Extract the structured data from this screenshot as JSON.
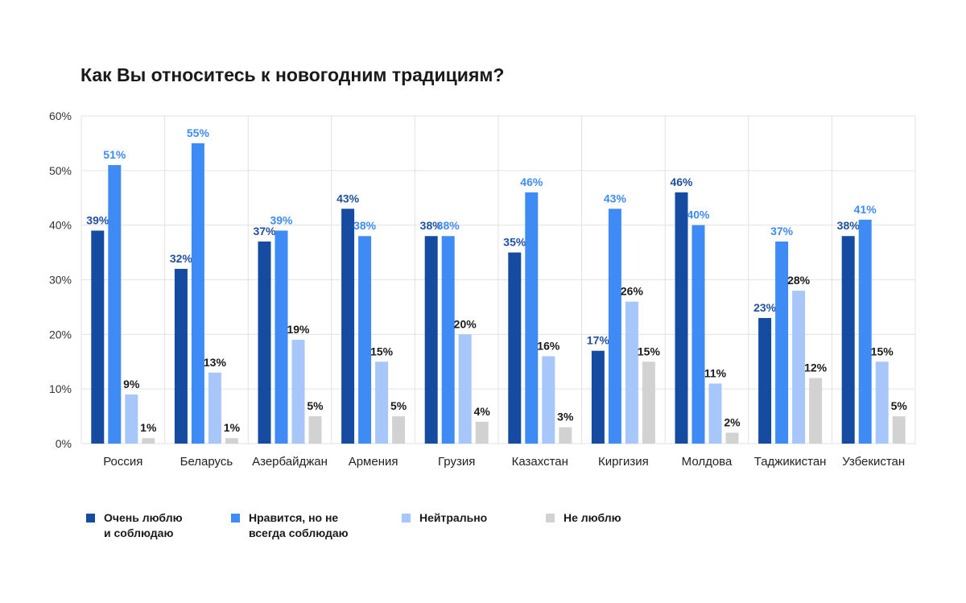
{
  "chart_data": {
    "type": "bar",
    "title": "Как Вы относитесь к новогодним традициям?",
    "xlabel": "",
    "ylabel": "",
    "ylim": [
      0,
      60
    ],
    "yticks": [
      0,
      10,
      20,
      30,
      40,
      50,
      60
    ],
    "ytick_suffix": "%",
    "grid": true,
    "legend_position": "bottom",
    "categories": [
      "Россия",
      "Беларусь",
      "Азербайджан",
      "Армения",
      "Грузия",
      "Казахстан",
      "Киргизия",
      "Молдова",
      "Таджикистан",
      "Узбекистан"
    ],
    "series": [
      {
        "name": "Очень люблю\nи соблюдаю",
        "color": "#154ba0",
        "label_color": "#1f4f9e",
        "values": [
          39,
          32,
          37,
          43,
          38,
          35,
          17,
          46,
          23,
          38
        ]
      },
      {
        "name": "Нравится, но не\nвсегда соблюдаю",
        "color": "#3f8bf5",
        "label_color": "#3f8bf5",
        "values": [
          51,
          55,
          39,
          38,
          38,
          46,
          43,
          40,
          37,
          41
        ]
      },
      {
        "name": "Нейтрально",
        "color": "#a7c7fa",
        "label_color": "#1a1a1a",
        "values": [
          9,
          13,
          19,
          15,
          20,
          16,
          26,
          11,
          28,
          15
        ]
      },
      {
        "name": "Не люблю",
        "color": "#d2d2d2",
        "label_color": "#1a1a1a",
        "values": [
          1,
          1,
          5,
          5,
          4,
          3,
          15,
          2,
          12,
          5
        ]
      }
    ]
  }
}
